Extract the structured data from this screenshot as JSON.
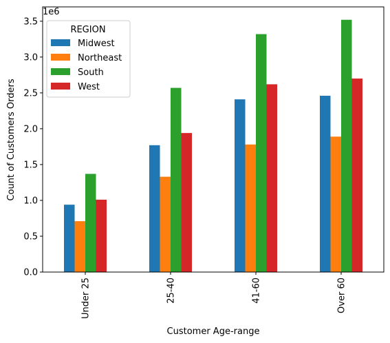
{
  "chart_data": {
    "type": "bar",
    "categories": [
      "Under 25",
      "25-40",
      "41-60",
      "Over 60"
    ],
    "series": [
      {
        "name": "Midwest",
        "color": "#1f77b4",
        "values": [
          940000,
          1770000,
          2410000,
          2460000
        ]
      },
      {
        "name": "Northeast",
        "color": "#ff7f0e",
        "values": [
          710000,
          1330000,
          1780000,
          1890000
        ]
      },
      {
        "name": "South",
        "color": "#2ca02c",
        "values": [
          1370000,
          2570000,
          3320000,
          3520000
        ]
      },
      {
        "name": "West",
        "color": "#d62728",
        "values": [
          1010000,
          1940000,
          2620000,
          2700000
        ]
      }
    ],
    "xlabel": "Customer Age-range",
    "ylabel": "Count of Customers Orders",
    "ylim": [
      0,
      3700000
    ],
    "yticks": [
      0,
      500000,
      1000000,
      1500000,
      2000000,
      2500000,
      3000000,
      3500000
    ],
    "ytick_labels": [
      "0.0",
      "0.5",
      "1.0",
      "1.5",
      "2.0",
      "2.5",
      "3.0",
      "3.5"
    ],
    "offset_label": "1e6",
    "legend": {
      "title": "REGION",
      "position": "top-left"
    },
    "grid": false
  }
}
